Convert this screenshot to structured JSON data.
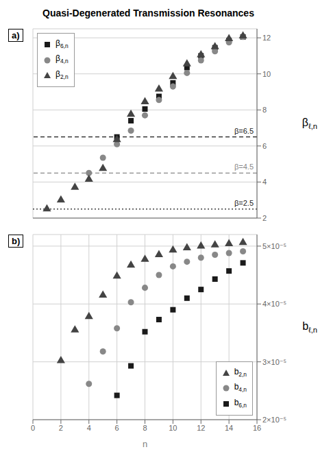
{
  "chart_data": [
    {
      "type": "scatter",
      "title": "Quasi-Degenerated Transmission Resonances",
      "panel_label": "a)",
      "ylabel": "βℓ,n",
      "series": [
        {
          "name": "β6,n",
          "color": "#1a1a1a",
          "marker": "square",
          "x": [
            6,
            7,
            8,
            9,
            10,
            11,
            12,
            13,
            14,
            15
          ],
          "values": [
            6.5,
            7.4,
            8.05,
            8.75,
            9.5,
            10.35,
            11.0,
            11.45,
            11.85,
            12.05
          ]
        },
        {
          "name": "β4,n",
          "color": "#888888",
          "marker": "circle",
          "x": [
            4,
            5,
            6,
            7,
            8,
            9,
            10,
            11,
            12,
            13,
            14,
            15
          ],
          "values": [
            4.5,
            5.35,
            6.1,
            6.85,
            7.7,
            8.55,
            9.3,
            10.05,
            10.75,
            11.25,
            11.75,
            12.05
          ]
        },
        {
          "name": "β2,n",
          "color": "#444444",
          "marker": "triangle",
          "x": [
            1,
            2,
            3,
            4,
            5,
            6,
            7,
            8,
            9,
            10,
            11,
            12,
            13,
            14,
            15
          ],
          "values": [
            2.5,
            3.0,
            3.7,
            4.15,
            4.75,
            6.35,
            7.75,
            8.45,
            9.15,
            9.85,
            10.55,
            11.05,
            11.5,
            11.95,
            12.1
          ]
        }
      ],
      "hlines": [
        {
          "y": 6.5,
          "label": "β=6.5",
          "color": "#1a1a1a",
          "line_style": "dashed"
        },
        {
          "y": 4.5,
          "label": "β=4.5",
          "color": "#888888",
          "line_style": "dashed"
        },
        {
          "y": 2.5,
          "label": "β=2.5",
          "color": "#1a1a1a",
          "line_style": "dotted"
        }
      ],
      "xlim": [
        0,
        16
      ],
      "xticks": [
        0,
        2,
        4,
        6,
        8,
        10,
        12,
        14,
        16
      ],
      "ylim": [
        2,
        12.5
      ],
      "yticks": [
        2,
        4,
        6,
        8,
        10,
        12
      ],
      "grid": true,
      "legend": "upper left",
      "tick_labels": "y"
    },
    {
      "type": "scatter",
      "panel_label": "b)",
      "xlabel": "n",
      "ylabel": "bℓ,n",
      "series": [
        {
          "name": "b2,n",
          "color": "#444444",
          "marker": "triangle",
          "x": [
            2,
            3,
            4,
            5,
            6,
            7,
            8,
            9,
            10,
            11,
            12,
            13,
            14,
            15
          ],
          "values": [
            3.02e-05,
            3.55e-05,
            3.78e-05,
            4.15e-05,
            4.48e-05,
            4.67e-05,
            4.77e-05,
            4.85e-05,
            4.93e-05,
            4.97e-05,
            5e-05,
            5.02e-05,
            5.04e-05,
            5.06e-05
          ]
        },
        {
          "name": "b4,n",
          "color": "#888888",
          "marker": "circle",
          "x": [
            4,
            5,
            6,
            7,
            8,
            9,
            10,
            11,
            12,
            13,
            14,
            15
          ],
          "values": [
            2.62e-05,
            3.18e-05,
            3.58e-05,
            4.03e-05,
            4.28e-05,
            4.5e-05,
            4.65e-05,
            4.73e-05,
            4.8e-05,
            4.85e-05,
            4.88e-05,
            4.91e-05
          ]
        },
        {
          "name": "b6,n",
          "color": "#1a1a1a",
          "marker": "square",
          "x": [
            6,
            7,
            8,
            9,
            10,
            11,
            12,
            13,
            14,
            15
          ],
          "values": [
            2.42e-05,
            2.93e-05,
            3.52e-05,
            3.73e-05,
            3.9e-05,
            4.1e-05,
            4.25e-05,
            4.43e-05,
            4.57e-05,
            4.71e-05
          ]
        }
      ],
      "xlim": [
        0,
        16
      ],
      "xticks": [
        0,
        2,
        4,
        6,
        8,
        10,
        12,
        14,
        16
      ],
      "ylim": [
        2e-05,
        5.2e-05
      ],
      "yticks": [
        {
          "value": 2e-05,
          "label": "2×10⁻⁵"
        },
        {
          "value": 3e-05,
          "label": "3×10⁻⁵"
        },
        {
          "value": 4e-05,
          "label": "4×10⁻⁵"
        },
        {
          "value": 5e-05,
          "label": "5×10⁻⁵"
        }
      ],
      "grid": true,
      "legend": "lower right"
    }
  ]
}
